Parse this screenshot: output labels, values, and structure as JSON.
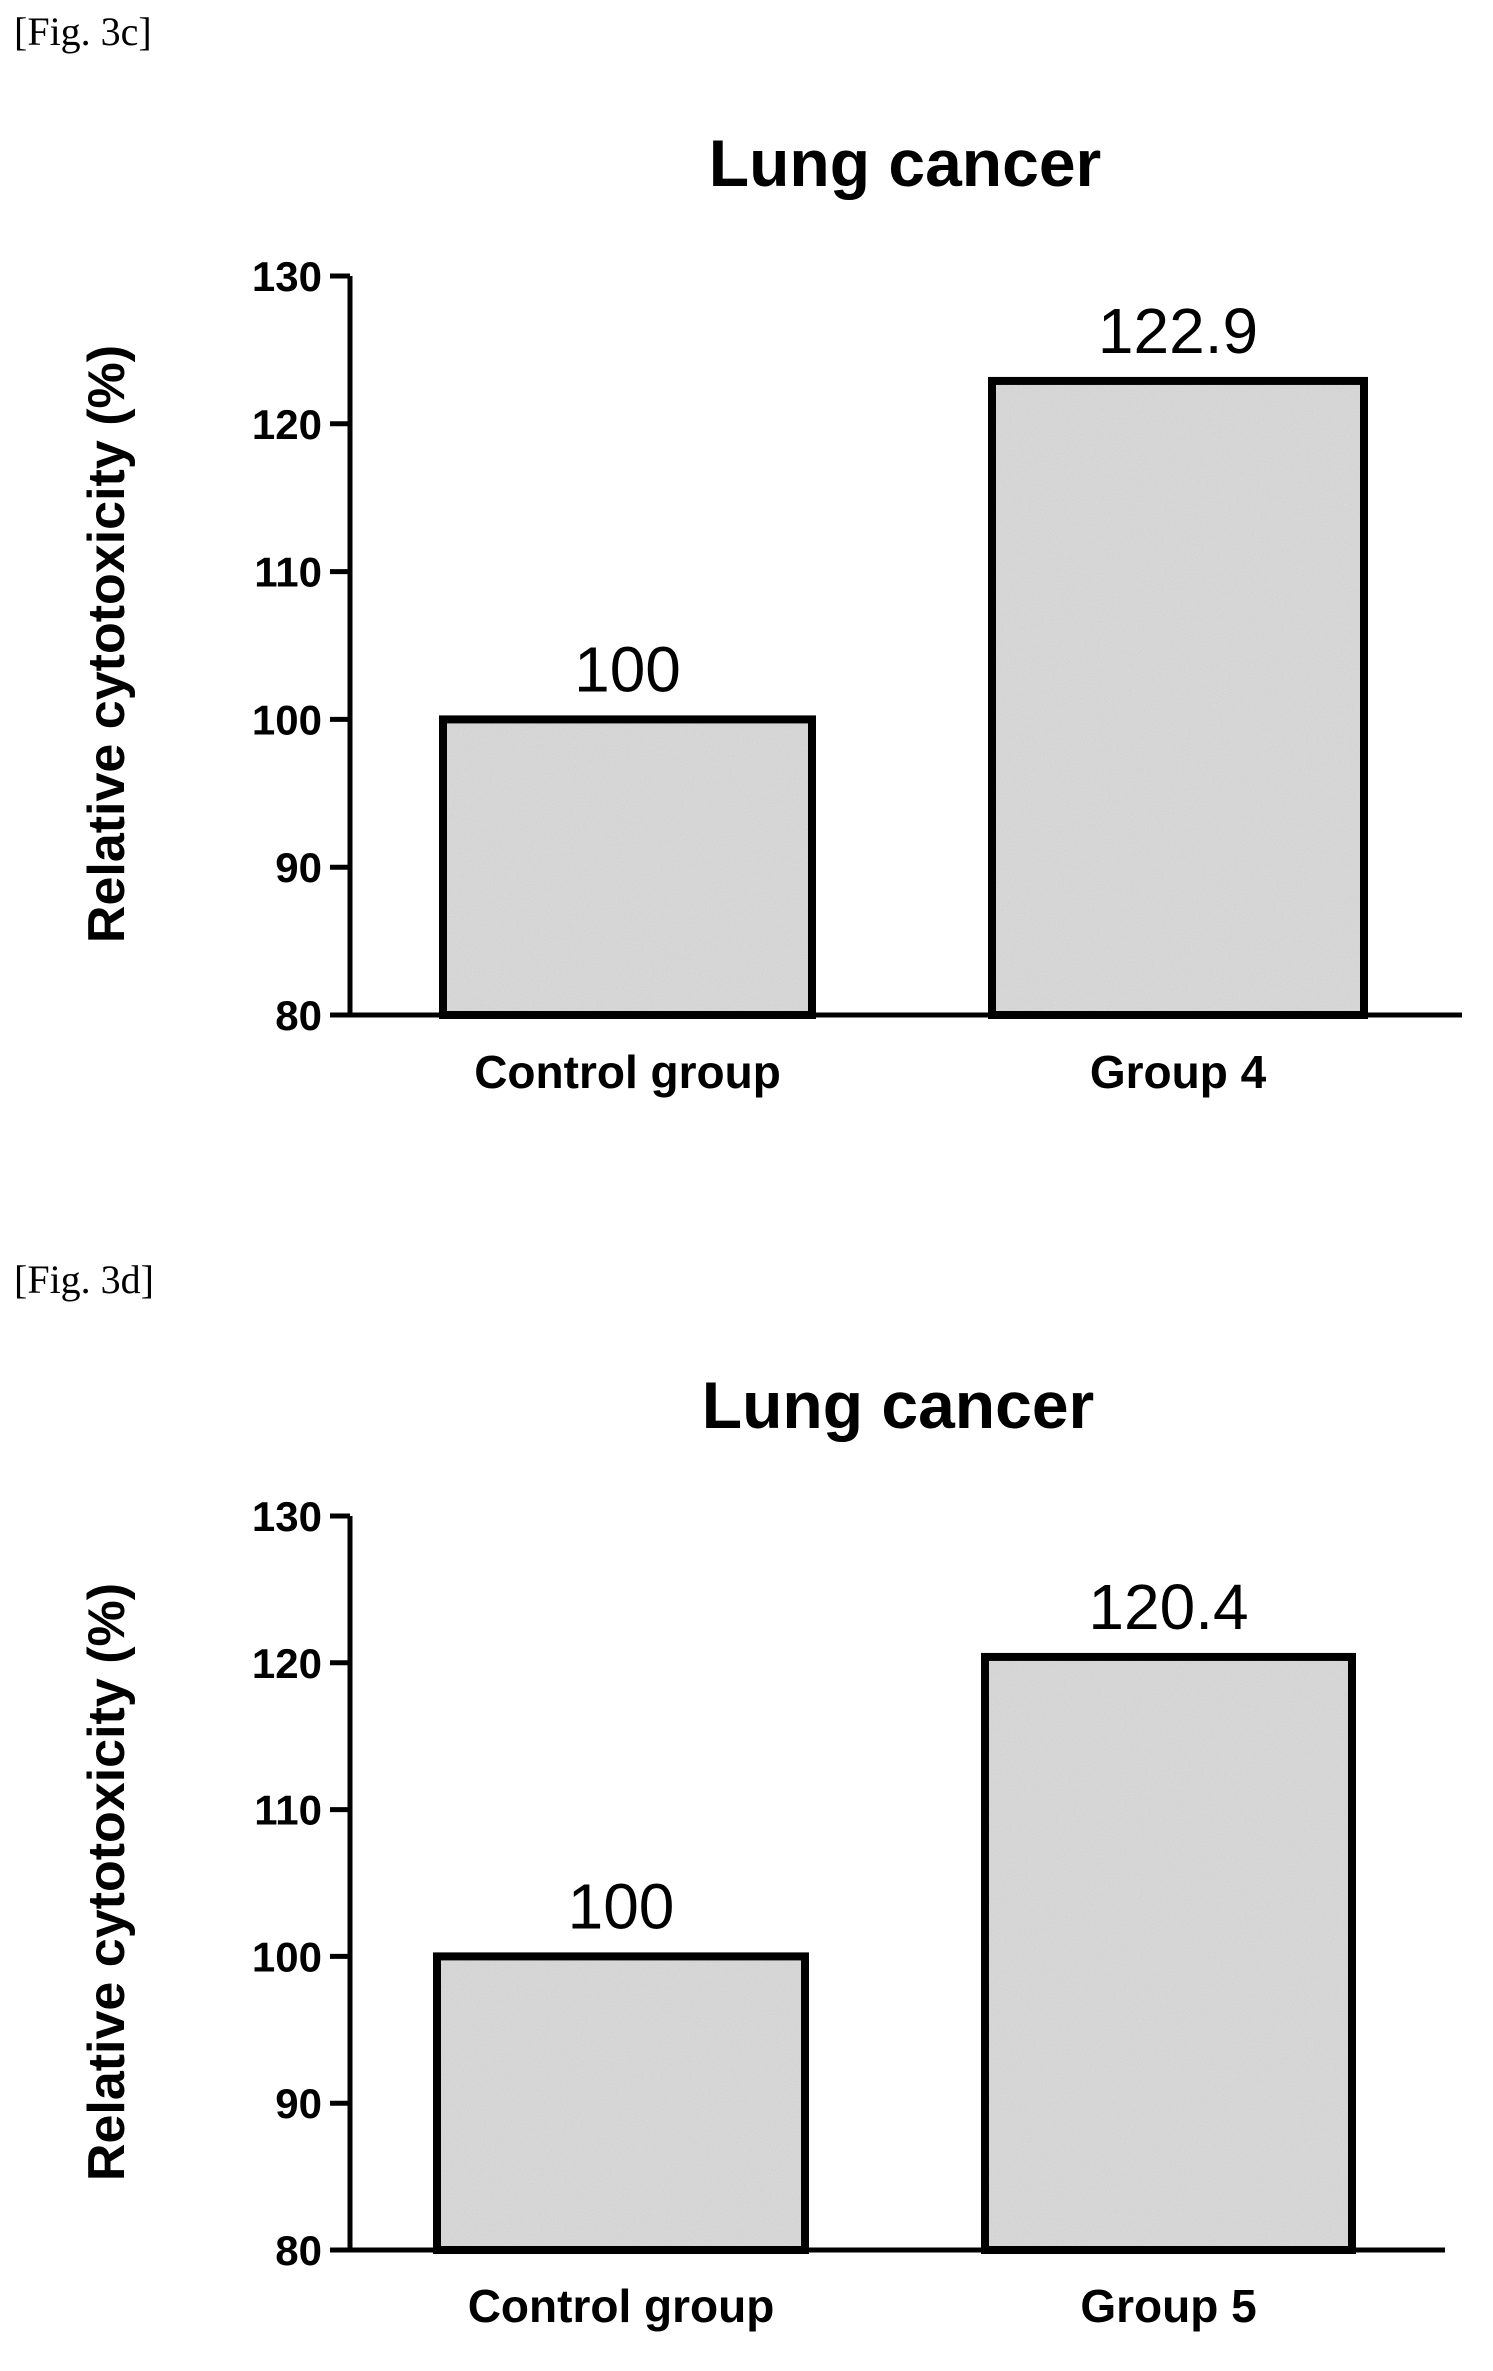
{
  "figures": [
    {
      "label": "[Fig. 3c]"
    },
    {
      "label": "[Fig. 3d]"
    }
  ],
  "chart_data": [
    {
      "type": "bar",
      "title": "Lung cancer",
      "xlabel": "",
      "ylabel": "Relative cytotoxicity (%)",
      "categories": [
        "Control group",
        "Group 4"
      ],
      "values": [
        100,
        122.9
      ],
      "data_labels": [
        "100",
        "122.9"
      ],
      "ylim": [
        80,
        130
      ],
      "yticks": [
        80,
        90,
        100,
        110,
        120,
        130
      ],
      "bar_fill": "#cfcfcf",
      "bar_stroke": "#000000",
      "grid": false,
      "legend": "none"
    },
    {
      "type": "bar",
      "title": "Lung cancer",
      "xlabel": "",
      "ylabel": "Relative cytotoxicity (%)",
      "categories": [
        "Control group",
        "Group 5"
      ],
      "values": [
        100,
        120.4
      ],
      "data_labels": [
        "100",
        "120.4"
      ],
      "ylim": [
        80,
        130
      ],
      "yticks": [
        80,
        90,
        100,
        110,
        120,
        130
      ],
      "bar_fill": "#cfcfcf",
      "bar_stroke": "#000000",
      "grid": false,
      "legend": "none"
    }
  ]
}
